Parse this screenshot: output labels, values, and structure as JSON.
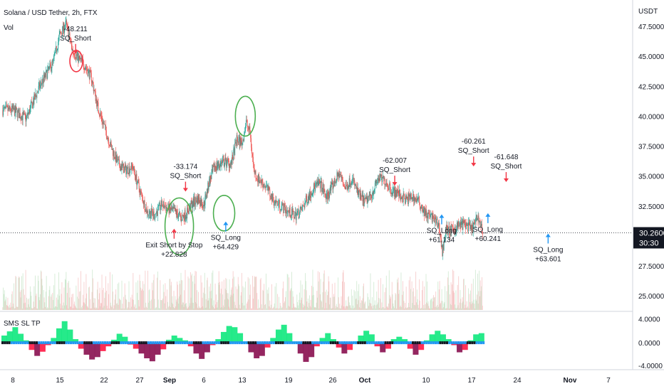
{
  "header": {
    "symbol_line": "Solana / USD Tether, 2h, FTX",
    "vol_label": "Vol",
    "currency_label": "USDT"
  },
  "price_tag": {
    "price": "30.2600",
    "countdown": "30:30"
  },
  "colors": {
    "candle_up": "#26a69a",
    "candle_down": "#ef5350",
    "price_line": "#131722",
    "circle": "#4caf50",
    "circle_red": "#f23645",
    "arrow_long": "#2196f3",
    "arrow_short": "#f23645",
    "osc_green": "#00e676",
    "osc_red": "#ff1744",
    "osc_maroon": "#880e4f",
    "osc_dot_blue": "#2196f3",
    "osc_dot_black": "#131722"
  },
  "chart_data": [
    {
      "type": "line",
      "series_kind": "candlestick-price",
      "y_ticks": [
        25.0,
        27.5,
        32.5,
        35.0,
        37.5,
        40.0,
        42.5,
        45.0,
        47.5
      ],
      "y_tick_labels": [
        "25.0000",
        "27.5000",
        "32.5000",
        "35.0000",
        "37.5000",
        "40.0000",
        "42.5000",
        "45.0000",
        "47.5000"
      ],
      "ylim": [
        23.7,
        49.7
      ],
      "x_ticks": [
        {
          "label": "8",
          "bold": false
        },
        {
          "label": "15",
          "bold": false
        },
        {
          "label": "22",
          "bold": false
        },
        {
          "label": "27",
          "bold": false
        },
        {
          "label": "Sep",
          "bold": true
        },
        {
          "label": "6",
          "bold": false
        },
        {
          "label": "13",
          "bold": false
        },
        {
          "label": "19",
          "bold": false
        },
        {
          "label": "26",
          "bold": false
        },
        {
          "label": "Oct",
          "bold": true
        },
        {
          "label": "10",
          "bold": false
        },
        {
          "label": "17",
          "bold": false
        },
        {
          "label": "24",
          "bold": false
        },
        {
          "label": "Nov",
          "bold": true
        },
        {
          "label": "7",
          "bold": false
        }
      ],
      "x_tick_days": [
        0,
        7,
        14,
        19,
        23,
        29,
        36,
        42,
        49,
        54,
        63,
        70,
        77,
        84,
        91
      ],
      "price_path_days": [
        0,
        2,
        4,
        6,
        7,
        8,
        9,
        10,
        11,
        12,
        13,
        14,
        15,
        16,
        17,
        18,
        19,
        20,
        21,
        22,
        23,
        24,
        25,
        26,
        27,
        28,
        29,
        30,
        31,
        33,
        34,
        35,
        36,
        36.5,
        37,
        37.5,
        38,
        39,
        40,
        41,
        42,
        43,
        44,
        45,
        46,
        47,
        48,
        49,
        50,
        51,
        52,
        53,
        54,
        55,
        56,
        57,
        58,
        59,
        60,
        61,
        62,
        63,
        64,
        65,
        65.5,
        66,
        67,
        68,
        69,
        70,
        71,
        71.7
      ],
      "price_path_values": [
        40.5,
        39.8,
        42.5,
        44.5,
        46.8,
        47.7,
        45.5,
        44.8,
        44.2,
        43.2,
        40.8,
        39.2,
        37.4,
        36.0,
        35.5,
        35.8,
        33.8,
        32.0,
        31.8,
        32.6,
        32.2,
        32.0,
        31.5,
        31.9,
        32.7,
        33.1,
        32.6,
        34.5,
        35.8,
        36.2,
        36.0,
        38.0,
        37.8,
        39.5,
        38.6,
        35.5,
        34.8,
        34.2,
        33.0,
        32.5,
        32.0,
        31.7,
        32.1,
        33.2,
        34.0,
        34.4,
        33.2,
        34.2,
        35.2,
        34.0,
        34.8,
        33.5,
        32.8,
        33.5,
        34.8,
        34.6,
        33.8,
        33.5,
        33.0,
        33.3,
        32.8,
        31.8,
        31.5,
        30.8,
        28.6,
        30.5,
        30.4,
        30.9,
        31.0,
        30.5,
        31.6,
        30.26
      ],
      "current_price": 30.26,
      "annotations": [
        {
          "kind": "short",
          "day": 9.5,
          "arrow_price": 45.2,
          "line1": "-48.211",
          "line2": "SQ_Short"
        },
        {
          "kind": "short",
          "day": 25.8,
          "arrow_price": 33.7,
          "line1": "-33.174",
          "line2": "SQ_Short"
        },
        {
          "kind": "exit",
          "day": 23.8,
          "arrow_price": 30.6,
          "line1": "Exit Short by Stop",
          "line2": "+22.828"
        },
        {
          "kind": "long",
          "day": 33.0,
          "arrow_price": 31.2,
          "line1": "SQ_Long",
          "line2": "+64.429"
        },
        {
          "kind": "short",
          "day": 58.4,
          "arrow_price": 34.2,
          "line1": "-62.007",
          "line2": "SQ_Short"
        },
        {
          "kind": "long",
          "day": 65.4,
          "arrow_price": 31.8,
          "line1": "SQ_Long",
          "line2": "+61.134"
        },
        {
          "kind": "short",
          "day": 70.3,
          "arrow_price": 35.8,
          "line1": "-60.261",
          "line2": "SQ_Short"
        },
        {
          "kind": "long",
          "day": 72.5,
          "arrow_price": 31.9,
          "line1": "SQ_Long",
          "line2": "+60.241"
        },
        {
          "kind": "short",
          "day": 75.3,
          "arrow_price": 34.5,
          "line1": "-61.648",
          "line2": "SQ_Short"
        },
        {
          "kind": "long",
          "day": 81.1,
          "arrow_price": 30.2,
          "line1": "SQ_Long",
          "line2": "+63.601"
        }
      ],
      "volume_note": "volume histogram along the bottom"
    },
    {
      "type": "area",
      "title": "SMS SL TP",
      "y_ticks": [
        -4.0,
        0.0,
        4.0
      ],
      "y_tick_labels": [
        "-4.0000",
        "0.0000",
        "4.0000"
      ],
      "ylim": [
        -4.5,
        5.0
      ],
      "values": [
        1.2,
        1.9,
        2.6,
        1.5,
        0.4,
        -1.2,
        -2.2,
        -1.5,
        -0.4,
        0.8,
        2.4,
        3.6,
        2.2,
        0.6,
        -1.0,
        -2.0,
        -2.8,
        -2.4,
        -1.4,
        -0.6,
        0.5,
        1.5,
        1.0,
        -0.3,
        -1.0,
        -1.8,
        -2.6,
        -3.1,
        -2.0,
        -1.1,
        0.5,
        1.2,
        0.8,
        0.4,
        -0.6,
        -1.8,
        -2.7,
        -1.6,
        -0.4,
        0.6,
        1.8,
        2.8,
        2.6,
        1.6,
        0.2,
        -1.6,
        -2.6,
        -2.2,
        -0.8,
        0.8,
        2.2,
        3.0,
        1.6,
        0.2,
        -1.8,
        -3.2,
        -2.4,
        -0.6,
        0.8,
        1.6,
        0.6,
        -0.8,
        -1.8,
        -1.2,
        0.2,
        1.2,
        2.0,
        1.4,
        -0.6,
        -1.6,
        -1.0,
        0.6,
        1.0,
        0.6,
        -1.0,
        -2.0,
        -1.2,
        0.4,
        1.4,
        2.0,
        1.4,
        0.6,
        -0.4,
        -1.6,
        -1.2,
        0.4,
        1.4,
        1.6
      ]
    }
  ]
}
